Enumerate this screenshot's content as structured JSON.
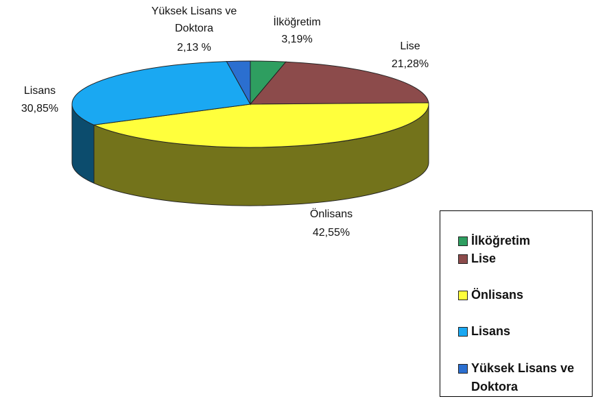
{
  "chart_data": {
    "type": "pie",
    "categories": [
      "İlköğretim",
      "Lise",
      "Önlisans",
      "Lisans",
      "Yüksek Lisans ve Doktora"
    ],
    "values": [
      3.19,
      21.28,
      42.55,
      30.85,
      2.13
    ],
    "value_labels": [
      "3,19%",
      "21,28%",
      "42,55%",
      "30,85%",
      "2,13 %"
    ],
    "colors": [
      "#2e9e60",
      "#8c4b4b",
      "#ffff3c",
      "#1aa8f2",
      "#2b6fd0"
    ],
    "legend": "right"
  }
}
